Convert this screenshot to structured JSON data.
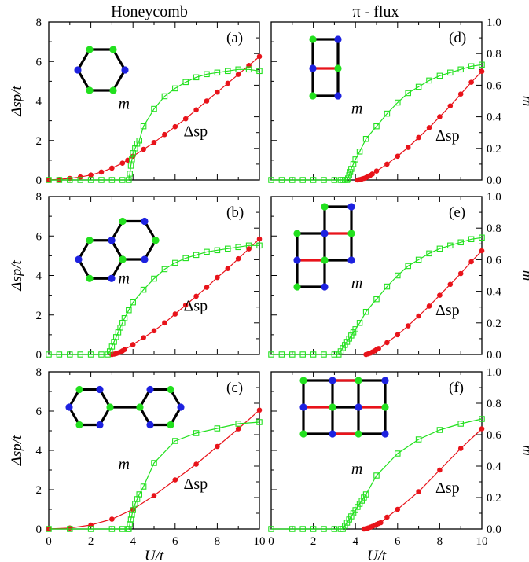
{
  "headers": {
    "left": "Honeycomb",
    "right": "π - flux"
  },
  "axes": {
    "y_left_label": "Δsp/t",
    "y_right_label": "m",
    "x_label": "U/t",
    "x_ticks": [
      "0",
      "2",
      "4",
      "6",
      "8",
      "10"
    ],
    "y_left_ticks": [
      "0",
      "2",
      "4",
      "6",
      "8"
    ],
    "y_right_ticks": [
      "0.0",
      "0.2",
      "0.4",
      "0.6",
      "0.8",
      "1.0"
    ]
  },
  "series_labels": {
    "gap": "Δsp",
    "mag": "m"
  },
  "colors": {
    "gap": "#e8131a",
    "mag": "#22e01e",
    "siteA": "#22e01e",
    "siteB": "#1d21e0",
    "bond": "#000000",
    "bondAlt": "#e8131a"
  },
  "chart_data": [
    {
      "type": "line",
      "panel": "(a)",
      "xlim": [
        0,
        10
      ],
      "ylim": [
        0,
        8
      ],
      "y2lim": [
        0,
        1
      ],
      "series": [
        {
          "name": "Δsp",
          "axis": "left",
          "x": [
            0,
            0.5,
            1,
            1.5,
            2,
            2.5,
            3,
            3.5,
            3.75,
            4,
            4.5,
            5,
            5.5,
            6,
            6.5,
            7,
            7.5,
            8,
            8.5,
            9,
            9.5,
            10
          ],
          "y": [
            0,
            0.03,
            0.08,
            0.15,
            0.25,
            0.4,
            0.6,
            0.85,
            1.0,
            1.2,
            1.55,
            1.9,
            2.3,
            2.7,
            3.1,
            3.55,
            4.0,
            4.45,
            4.9,
            5.35,
            5.8,
            6.25
          ]
        },
        {
          "name": "m",
          "axis": "right",
          "x": [
            0,
            0.5,
            1,
            1.5,
            2,
            2.5,
            3,
            3.5,
            3.8,
            3.85,
            3.9,
            3.95,
            4.0,
            4.1,
            4.2,
            4.3,
            4.5,
            5,
            5.5,
            6,
            6.5,
            7,
            7.5,
            8,
            8.5,
            9,
            9.5,
            10
          ],
          "y": [
            0,
            0,
            0,
            0,
            0,
            0,
            0,
            0,
            0,
            0.04,
            0.09,
            0.13,
            0.17,
            0.2,
            0.23,
            0.25,
            0.34,
            0.45,
            0.53,
            0.58,
            0.62,
            0.65,
            0.67,
            0.68,
            0.69,
            0.7,
            0.7,
            0.69
          ]
        }
      ]
    },
    {
      "type": "line",
      "panel": "(d)",
      "xlim": [
        0,
        10
      ],
      "ylim": [
        0,
        8
      ],
      "y2lim": [
        0,
        1
      ],
      "series": [
        {
          "name": "Δsp",
          "axis": "left",
          "x": [
            4.1,
            4.2,
            4.3,
            4.4,
            4.5,
            4.6,
            4.7,
            4.8,
            5,
            5.5,
            6,
            6.5,
            7,
            7.5,
            8,
            8.5,
            9,
            9.5,
            10
          ],
          "y": [
            0,
            0.02,
            0.05,
            0.08,
            0.12,
            0.17,
            0.23,
            0.3,
            0.45,
            0.8,
            1.2,
            1.65,
            2.15,
            2.65,
            3.2,
            3.75,
            4.35,
            4.95,
            5.5
          ]
        },
        {
          "name": "m",
          "axis": "right",
          "x": [
            0,
            0.5,
            1,
            1.5,
            2,
            2.5,
            3,
            3.3,
            3.4,
            3.5,
            3.6,
            3.65,
            3.7,
            3.75,
            3.8,
            3.9,
            4.0,
            4.2,
            4.5,
            5,
            5.5,
            6,
            6.5,
            7,
            7.5,
            8,
            8.5,
            9,
            9.5,
            10
          ],
          "y": [
            0,
            0,
            0,
            0,
            0,
            0,
            0,
            0,
            0,
            0,
            0,
            0.01,
            0.03,
            0.05,
            0.07,
            0.1,
            0.13,
            0.18,
            0.26,
            0.34,
            0.42,
            0.49,
            0.55,
            0.59,
            0.63,
            0.66,
            0.68,
            0.7,
            0.72,
            0.73
          ]
        }
      ]
    },
    {
      "type": "line",
      "panel": "(b)",
      "xlim": [
        0,
        10
      ],
      "ylim": [
        0,
        8
      ],
      "y2lim": [
        0,
        1
      ],
      "series": [
        {
          "name": "Δsp",
          "axis": "left",
          "x": [
            3,
            3.1,
            3.2,
            3.3,
            3.4,
            3.5,
            3.6,
            4,
            4.5,
            5,
            5.5,
            6,
            6.5,
            7,
            7.5,
            8,
            8.5,
            9,
            9.5,
            10
          ],
          "y": [
            0,
            0.02,
            0.05,
            0.08,
            0.12,
            0.18,
            0.25,
            0.5,
            0.85,
            1.2,
            1.6,
            2.05,
            2.5,
            2.95,
            3.4,
            3.9,
            4.35,
            4.85,
            5.35,
            5.85
          ]
        },
        {
          "name": "m",
          "axis": "right",
          "x": [
            0,
            0.5,
            1,
            1.5,
            2,
            2.5,
            2.8,
            2.9,
            3.0,
            3.1,
            3.2,
            3.3,
            3.4,
            3.5,
            3.6,
            3.8,
            4.0,
            4.5,
            5,
            5.5,
            6,
            6.5,
            7,
            7.5,
            8,
            8.5,
            9,
            9.5,
            10
          ],
          "y": [
            0,
            0,
            0,
            0,
            0,
            0,
            0,
            0.02,
            0.05,
            0.08,
            0.11,
            0.14,
            0.17,
            0.2,
            0.23,
            0.28,
            0.33,
            0.41,
            0.48,
            0.54,
            0.58,
            0.61,
            0.63,
            0.65,
            0.66,
            0.67,
            0.68,
            0.69,
            0.69
          ]
        }
      ]
    },
    {
      "type": "line",
      "panel": "(e)",
      "xlim": [
        0,
        10
      ],
      "ylim": [
        0,
        8
      ],
      "y2lim": [
        0,
        1
      ],
      "series": [
        {
          "name": "Δsp",
          "axis": "left",
          "x": [
            4.5,
            4.6,
            4.7,
            4.8,
            4.9,
            5,
            5.1,
            5.5,
            6,
            6.5,
            7,
            7.5,
            8,
            8.5,
            9,
            9.5,
            10
          ],
          "y": [
            0,
            0.03,
            0.07,
            0.12,
            0.18,
            0.25,
            0.3,
            0.6,
            1.0,
            1.45,
            1.95,
            2.45,
            3.0,
            3.55,
            4.1,
            4.7,
            5.25
          ]
        },
        {
          "name": "m",
          "axis": "right",
          "x": [
            0,
            0.5,
            1,
            1.5,
            2,
            2.5,
            3,
            3.2,
            3.3,
            3.4,
            3.5,
            3.6,
            3.7,
            3.8,
            3.9,
            4.0,
            4.2,
            4.5,
            5,
            5.5,
            6,
            6.5,
            7,
            7.5,
            8,
            8.5,
            9,
            9.5,
            10
          ],
          "y": [
            0,
            0,
            0,
            0,
            0,
            0,
            0,
            0,
            0.02,
            0.04,
            0.06,
            0.08,
            0.1,
            0.12,
            0.14,
            0.16,
            0.2,
            0.27,
            0.35,
            0.43,
            0.5,
            0.56,
            0.6,
            0.64,
            0.67,
            0.69,
            0.71,
            0.73,
            0.74
          ]
        }
      ]
    },
    {
      "type": "line",
      "panel": "(c)",
      "xlim": [
        0,
        10
      ],
      "ylim": [
        0,
        8
      ],
      "y2lim": [
        0,
        1
      ],
      "series": [
        {
          "name": "Δsp",
          "axis": "left",
          "x": [
            0,
            1,
            2,
            3,
            4,
            5,
            6,
            7,
            8,
            9,
            10
          ],
          "y": [
            0,
            0.05,
            0.2,
            0.5,
            1.0,
            1.7,
            2.5,
            3.3,
            4.2,
            5.1,
            6.05
          ]
        },
        {
          "name": "m",
          "axis": "right",
          "x": [
            0,
            1,
            2,
            3,
            3.5,
            3.75,
            3.8,
            3.85,
            3.9,
            3.95,
            4.0,
            4.1,
            4.2,
            4.3,
            4.5,
            5,
            6,
            7,
            8,
            9,
            10
          ],
          "y": [
            0,
            0,
            0,
            0,
            0,
            0,
            0,
            0.03,
            0.06,
            0.09,
            0.12,
            0.16,
            0.19,
            0.22,
            0.27,
            0.42,
            0.56,
            0.61,
            0.64,
            0.67,
            0.68
          ]
        }
      ]
    },
    {
      "type": "line",
      "panel": "(f)",
      "xlim": [
        0,
        10
      ],
      "ylim": [
        0,
        8
      ],
      "y2lim": [
        0,
        1
      ],
      "series": [
        {
          "name": "Δsp",
          "axis": "left",
          "x": [
            4.4,
            4.5,
            4.6,
            4.7,
            4.8,
            4.9,
            5,
            5.1,
            5.2,
            5.5,
            6,
            7,
            8,
            9,
            10
          ],
          "y": [
            0,
            0.02,
            0.05,
            0.09,
            0.13,
            0.18,
            0.23,
            0.28,
            0.32,
            0.6,
            1.0,
            1.9,
            3.0,
            4.1,
            5.1
          ]
        },
        {
          "name": "m",
          "axis": "right",
          "x": [
            0,
            1,
            1.5,
            2,
            2.5,
            3,
            3.3,
            3.4,
            3.5,
            3.6,
            3.7,
            3.8,
            3.9,
            4.0,
            4.1,
            4.2,
            4.3,
            4.4,
            4.5,
            5,
            6,
            7,
            8,
            9,
            10
          ],
          "y": [
            0,
            0,
            0,
            0,
            0,
            0,
            0,
            0,
            0.02,
            0.04,
            0.06,
            0.08,
            0.1,
            0.12,
            0.14,
            0.16,
            0.18,
            0.2,
            0.22,
            0.34,
            0.48,
            0.57,
            0.63,
            0.67,
            0.7
          ]
        }
      ]
    }
  ]
}
